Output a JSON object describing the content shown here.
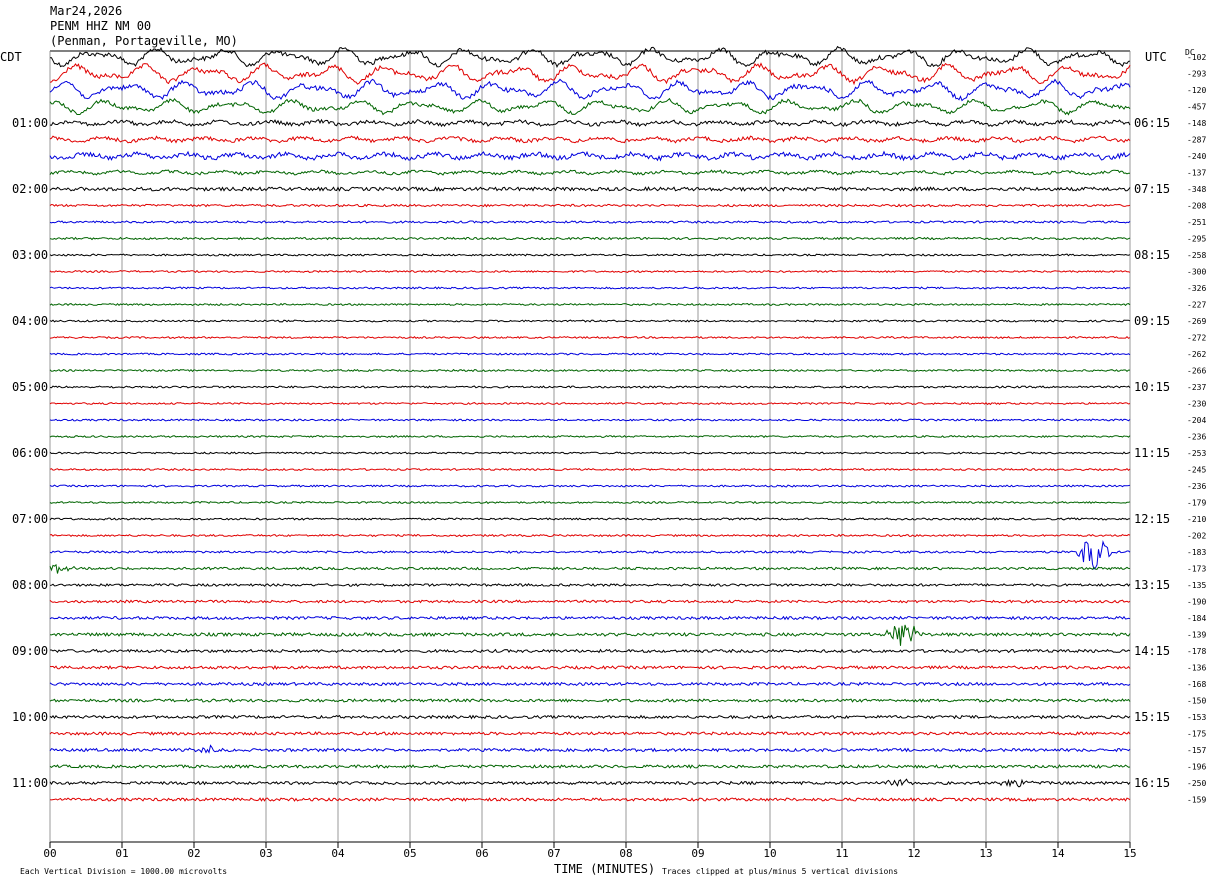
{
  "header": {
    "date": "Mar24,2026",
    "station": "PENM HHZ NM 00",
    "location": "(Penman, Portageville, MO)"
  },
  "left_zone_label": "CDT",
  "right_zone_label": "UTC",
  "dc_label": "DC",
  "footer": {
    "scale_note": "Each Vertical Division = 1000.00 microvolts",
    "xlabel": "TIME (MINUTES)",
    "clip_note": "Traces clipped at plus/minus 5 vertical divisions"
  },
  "colors": {
    "black": "#000000",
    "red": "#e00000",
    "blue": "#0000dd",
    "green": "#006400",
    "grid": "#808080"
  },
  "chart_data": {
    "type": "line",
    "subtype": "helicorder",
    "xlabel": "TIME (MINUTES)",
    "xlim": [
      0,
      15
    ],
    "x_ticks": [
      "00",
      "01",
      "02",
      "03",
      "04",
      "05",
      "06",
      "07",
      "08",
      "09",
      "10",
      "11",
      "12",
      "13",
      "14",
      "15"
    ],
    "left_time_labels": [
      "01:00",
      "02:00",
      "03:00",
      "04:00",
      "05:00",
      "06:00",
      "07:00",
      "08:00",
      "09:00",
      "10:00",
      "11:00"
    ],
    "right_time_labels": [
      "06:15",
      "07:15",
      "08:15",
      "09:15",
      "10:15",
      "11:15",
      "12:15",
      "13:15",
      "14:15",
      "15:15",
      "16:15"
    ],
    "dc_offsets": [
      -102,
      -293,
      -120,
      -457,
      -148,
      -287,
      -240,
      -137,
      -348,
      -208,
      -251,
      -295,
      -258,
      -300,
      -326,
      -227,
      -269,
      -272,
      -262,
      -266,
      -237,
      -230,
      -204,
      -236,
      -253,
      -245,
      -236,
      -179,
      -210,
      -202,
      -183,
      -173,
      -135,
      -190,
      -184,
      -139,
      -178,
      -136,
      -168,
      -150,
      -153,
      -175,
      -157,
      -196,
      -250,
      -159
    ],
    "trace_colors": [
      "black",
      "red",
      "blue",
      "green"
    ],
    "trace_activity": [
      9,
      9,
      9,
      7,
      4,
      4,
      5,
      3,
      2.2,
      1.4,
      1.3,
      1.3,
      1.1,
      1.1,
      1.1,
      1.1,
      1.1,
      1.1,
      1.1,
      1.1,
      1.2,
      1.1,
      1.1,
      1.1,
      1.1,
      1.1,
      1.1,
      1.1,
      1.2,
      1.2,
      1.3,
      1.5,
      1.5,
      1.6,
      1.8,
      2,
      1.8,
      1.8,
      1.8,
      1.8,
      1.8,
      1.8,
      1.8,
      1.8,
      1.8,
      1.8
    ],
    "events": [
      {
        "trace": 30,
        "minute": 14.5,
        "amplitude": 20
      },
      {
        "trace": 35,
        "minute": 11.85,
        "amplitude": 16
      },
      {
        "trace": 31,
        "minute": 0.1,
        "amplitude": 5
      },
      {
        "trace": 44,
        "minute": 11.8,
        "amplitude": 5
      },
      {
        "trace": 44,
        "minute": 13.4,
        "amplitude": 5
      },
      {
        "trace": 42,
        "minute": 2.2,
        "amplitude": 4
      }
    ]
  }
}
